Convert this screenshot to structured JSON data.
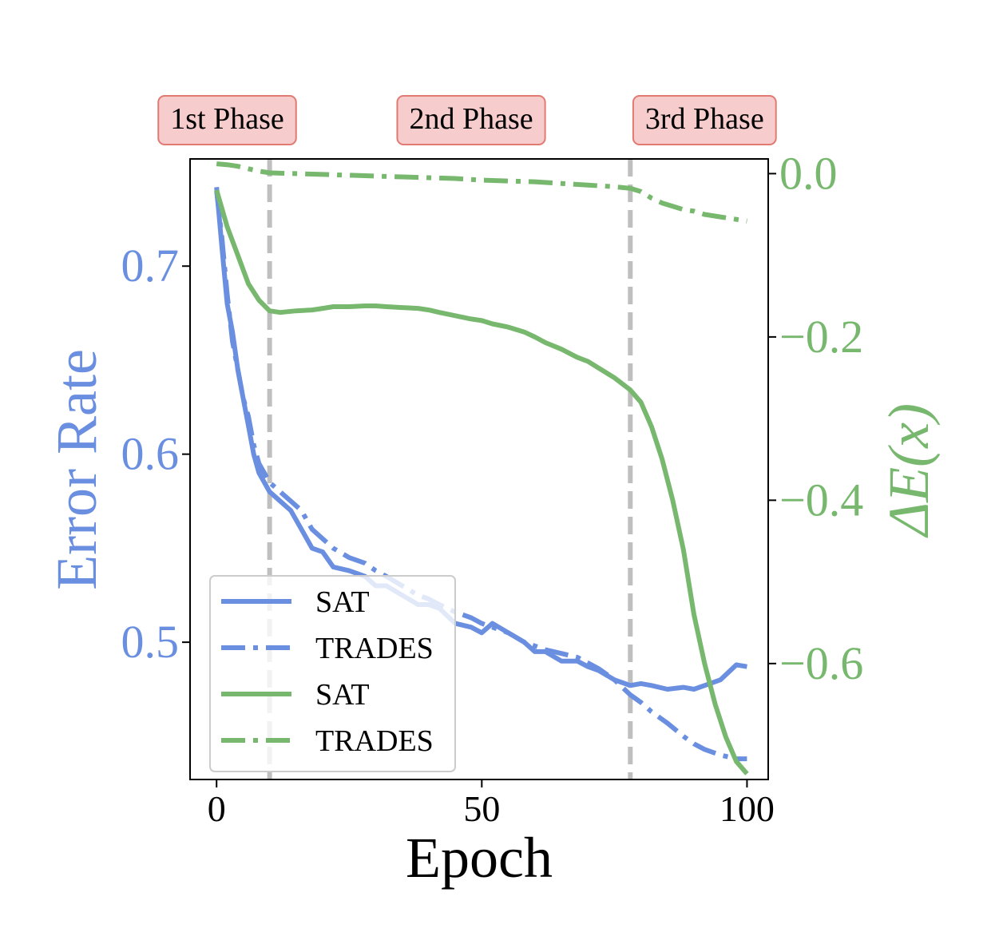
{
  "chart_data": {
    "type": "line",
    "title": "",
    "xlabel": "Epoch",
    "ylabel_left": "Error Rate",
    "ylabel_right": "ΔE(x)",
    "xlim": [
      -5,
      104
    ],
    "ylim_left": [
      0.427,
      0.757
    ],
    "ylim_right": [
      -0.742,
      0.018
    ],
    "xticks": [
      "0",
      "50",
      "100"
    ],
    "yticks_left": [
      "0.5",
      "0.6",
      "0.7"
    ],
    "yticks_right": [
      "0.0",
      "−0.2",
      "−0.4",
      "−0.6"
    ],
    "phase_markers": [
      10,
      78
    ],
    "phase_labels": [
      {
        "text": "1st Phase",
        "x": 2
      },
      {
        "text": "2nd Phase",
        "x": 48
      },
      {
        "text": "3rd Phase",
        "x": 92
      }
    ],
    "colors": {
      "blue": "#6b8fe0",
      "green": "#77b86e",
      "phase_fill": "#f7cccc",
      "phase_border": "#e07a72",
      "marker": "#bfbfbf"
    },
    "legend": {
      "location": "lower-left",
      "entries": [
        {
          "label": "SAT",
          "color": "blue",
          "style": "solid"
        },
        {
          "label": "TRADES",
          "color": "blue",
          "style": "dashdot"
        },
        {
          "label": "SAT",
          "color": "green",
          "style": "solid"
        },
        {
          "label": "TRADES",
          "color": "green",
          "style": "dashdot"
        }
      ]
    },
    "series": [
      {
        "axis": "left",
        "color": "blue",
        "style": "solid",
        "x": [
          0,
          1,
          2,
          3,
          4,
          5,
          6,
          7,
          8,
          9,
          10,
          12,
          14,
          16,
          18,
          20,
          22,
          25,
          28,
          30,
          32,
          35,
          38,
          40,
          42,
          45,
          48,
          50,
          52,
          55,
          58,
          60,
          62,
          65,
          68,
          70,
          72,
          75,
          78,
          80,
          82,
          85,
          88,
          90,
          92,
          95,
          98,
          100
        ],
        "y": [
          0.742,
          0.71,
          0.68,
          0.665,
          0.645,
          0.63,
          0.615,
          0.6,
          0.59,
          0.585,
          0.58,
          0.575,
          0.57,
          0.56,
          0.55,
          0.548,
          0.54,
          0.538,
          0.535,
          0.53,
          0.53,
          0.525,
          0.52,
          0.52,
          0.518,
          0.51,
          0.508,
          0.505,
          0.51,
          0.505,
          0.5,
          0.495,
          0.495,
          0.49,
          0.49,
          0.487,
          0.485,
          0.48,
          0.477,
          0.478,
          0.477,
          0.475,
          0.476,
          0.475,
          0.477,
          0.48,
          0.488,
          0.487
        ]
      },
      {
        "axis": "left",
        "color": "blue",
        "style": "dashdot",
        "x": [
          0,
          1,
          2,
          3,
          4,
          5,
          6,
          7,
          8,
          9,
          10,
          12,
          14,
          16,
          18,
          20,
          22,
          25,
          28,
          30,
          32,
          35,
          38,
          40,
          42,
          45,
          48,
          50,
          52,
          55,
          58,
          60,
          62,
          65,
          68,
          70,
          72,
          75,
          78,
          80,
          82,
          85,
          88,
          90,
          92,
          95,
          98,
          100
        ],
        "y": [
          0.74,
          0.715,
          0.685,
          0.66,
          0.645,
          0.63,
          0.62,
          0.605,
          0.595,
          0.59,
          0.585,
          0.58,
          0.575,
          0.57,
          0.56,
          0.555,
          0.55,
          0.545,
          0.542,
          0.538,
          0.535,
          0.53,
          0.525,
          0.523,
          0.52,
          0.516,
          0.513,
          0.51,
          0.508,
          0.505,
          0.5,
          0.498,
          0.496,
          0.494,
          0.492,
          0.489,
          0.486,
          0.48,
          0.472,
          0.468,
          0.463,
          0.457,
          0.45,
          0.446,
          0.443,
          0.44,
          0.438,
          0.438
        ]
      },
      {
        "axis": "right",
        "color": "green",
        "style": "solid",
        "x": [
          0,
          2,
          4,
          6,
          8,
          10,
          12,
          15,
          18,
          20,
          22,
          25,
          28,
          30,
          32,
          35,
          38,
          40,
          42,
          45,
          48,
          50,
          52,
          55,
          58,
          60,
          62,
          65,
          68,
          70,
          72,
          75,
          78,
          80,
          82,
          84,
          86,
          88,
          90,
          92,
          94,
          96,
          98,
          100
        ],
        "y": [
          -0.02,
          -0.065,
          -0.1,
          -0.135,
          -0.155,
          -0.168,
          -0.17,
          -0.168,
          -0.167,
          -0.165,
          -0.163,
          -0.163,
          -0.162,
          -0.162,
          -0.163,
          -0.164,
          -0.165,
          -0.167,
          -0.17,
          -0.174,
          -0.178,
          -0.18,
          -0.184,
          -0.188,
          -0.194,
          -0.2,
          -0.207,
          -0.215,
          -0.225,
          -0.23,
          -0.238,
          -0.25,
          -0.265,
          -0.28,
          -0.31,
          -0.35,
          -0.4,
          -0.46,
          -0.54,
          -0.6,
          -0.65,
          -0.69,
          -0.72,
          -0.735
        ]
      },
      {
        "axis": "right",
        "color": "green",
        "style": "dashdot",
        "x": [
          0,
          2,
          4,
          6,
          8,
          10,
          15,
          20,
          25,
          30,
          35,
          40,
          45,
          50,
          55,
          60,
          65,
          70,
          75,
          78,
          80,
          82,
          84,
          86,
          88,
          90,
          92,
          95,
          98,
          100
        ],
        "y": [
          0.012,
          0.011,
          0.009,
          0.006,
          0.003,
          0.001,
          0,
          -0.001,
          -0.002,
          -0.003,
          -0.004,
          -0.005,
          -0.006,
          -0.008,
          -0.009,
          -0.01,
          -0.012,
          -0.014,
          -0.016,
          -0.018,
          -0.022,
          -0.03,
          -0.036,
          -0.04,
          -0.044,
          -0.046,
          -0.05,
          -0.053,
          -0.056,
          -0.058
        ]
      }
    ]
  }
}
